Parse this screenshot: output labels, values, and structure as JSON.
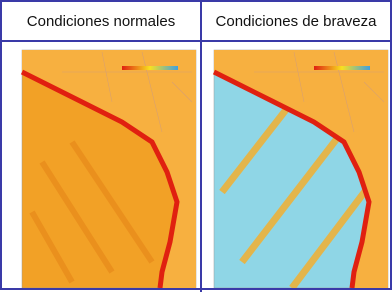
{
  "header": {
    "left": "Condiciones normales",
    "right": "Condiciones de braveza"
  }
}
